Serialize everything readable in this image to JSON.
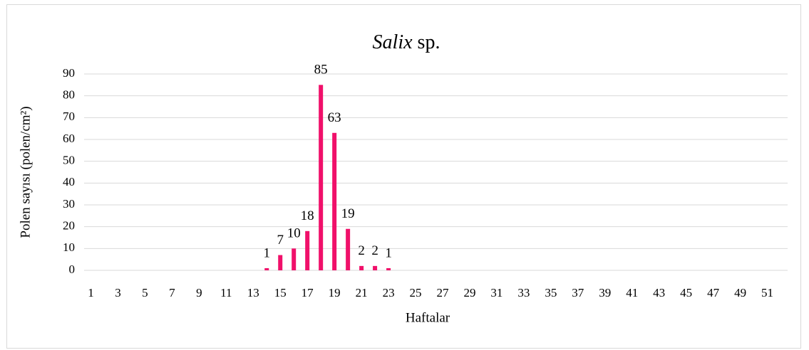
{
  "chart_data": {
    "type": "bar",
    "title": {
      "italic": "Salix",
      "rest": "sp."
    },
    "x_label": "Haftalar",
    "y_label": "Polen sayısı (polen/cm²)",
    "categories": [
      1,
      null,
      3,
      null,
      5,
      null,
      7,
      null,
      9,
      null,
      11,
      null,
      13,
      null,
      15,
      null,
      17,
      null,
      19,
      null,
      21,
      null,
      23,
      null,
      25,
      null,
      27,
      null,
      29,
      null,
      31,
      null,
      33,
      null,
      35,
      null,
      37,
      null,
      39,
      null,
      41,
      null,
      43,
      null,
      45,
      null,
      47,
      null,
      49,
      null,
      51,
      null
    ],
    "values": [
      0,
      0,
      0,
      0,
      0,
      0,
      0,
      0,
      0,
      0,
      0,
      0,
      0,
      1,
      7,
      10,
      18,
      85,
      63,
      19,
      2,
      2,
      1,
      0,
      0,
      0,
      0,
      0,
      0,
      0,
      0,
      0,
      0,
      0,
      0,
      0,
      0,
      0,
      0,
      0,
      0,
      0,
      0,
      0,
      0,
      0,
      0,
      0,
      0,
      0,
      0,
      0
    ],
    "color": "#f0106a",
    "ylim": [
      0,
      90
    ],
    "yticks": [
      0,
      10,
      20,
      30,
      40,
      50,
      60,
      70,
      80,
      90
    ],
    "grid": true
  }
}
